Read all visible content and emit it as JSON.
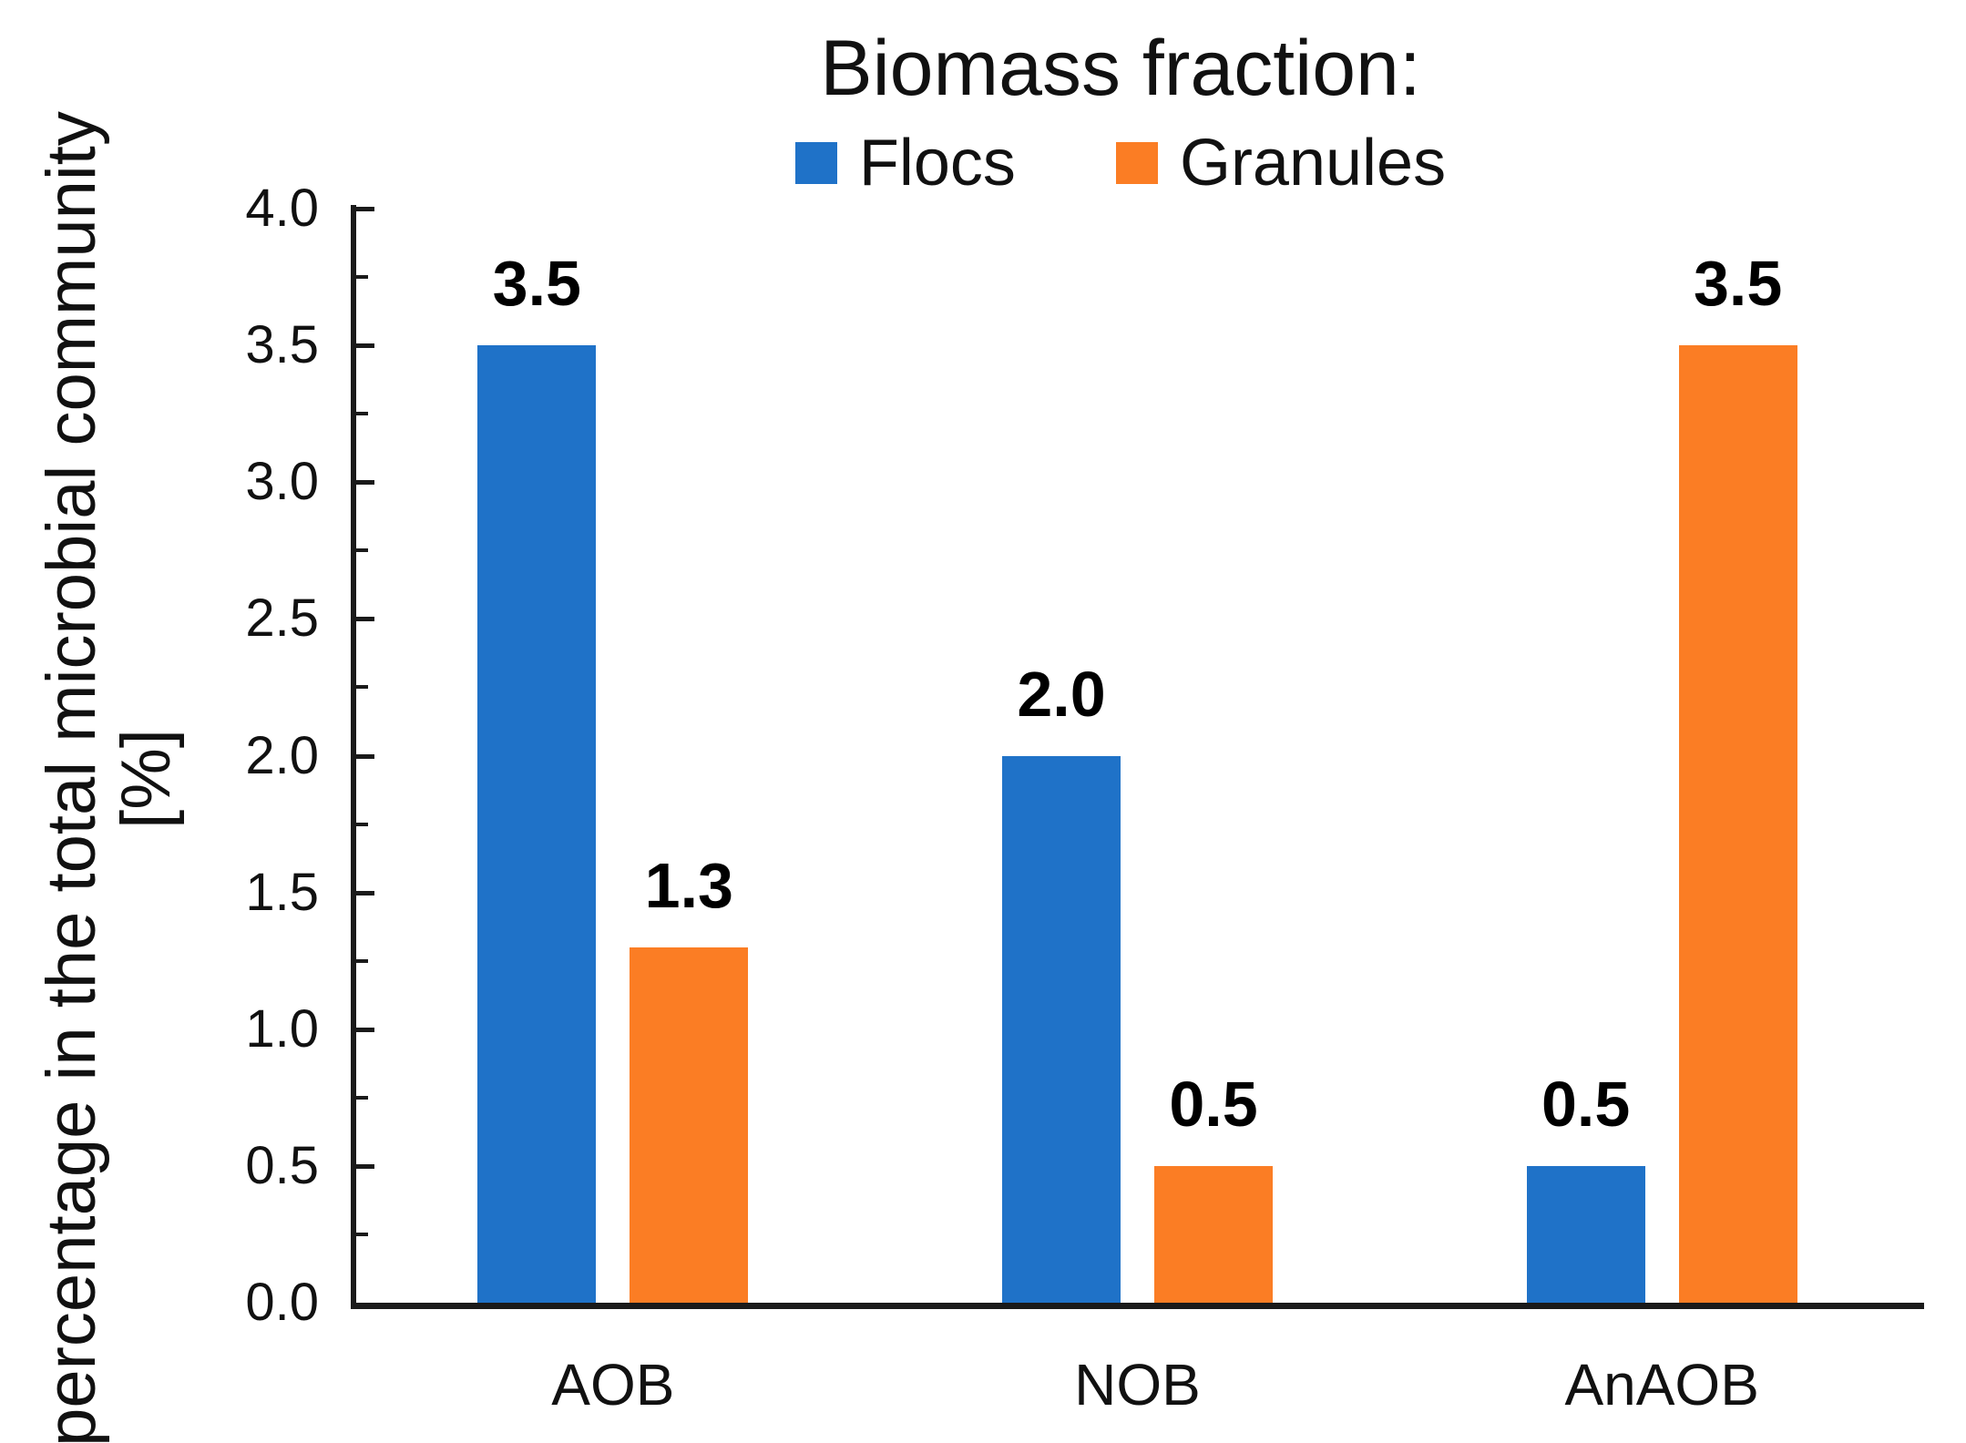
{
  "title": "Biomass fraction:",
  "legend": {
    "items": [
      {
        "label": "Flocs",
        "color": "#1F72C8"
      },
      {
        "label": "Granules",
        "color": "#FB7D24"
      }
    ]
  },
  "y_axis": {
    "title_line1": "percentage in the total microbial community",
    "title_line2": "[%]",
    "tick_labels": [
      "4.0",
      "3.5",
      "3.0",
      "2.5",
      "2.0",
      "1.5",
      "1.0",
      "0.5",
      "0.0"
    ],
    "min": 0,
    "max": 4,
    "major_step": 0.5,
    "minor_step": 0.25
  },
  "chart_data": {
    "type": "bar",
    "title": "Biomass fraction:",
    "categories": [
      "AOB",
      "NOB",
      "AnAOB"
    ],
    "series": [
      {
        "name": "Flocs",
        "color": "#1F72C8",
        "values": [
          3.5,
          2.0,
          0.5
        ],
        "data_labels": [
          "3.5",
          "2.0",
          "0.5"
        ]
      },
      {
        "name": "Granules",
        "color": "#FB7D24",
        "values": [
          1.3,
          0.5,
          3.5
        ],
        "data_labels": [
          "1.3",
          "0.5",
          "3.5"
        ]
      }
    ],
    "ylabel": "percentage in the total microbial community [%]",
    "xlabel": "",
    "ylim": [
      0,
      4
    ],
    "grid": false,
    "legend_position": "top"
  }
}
